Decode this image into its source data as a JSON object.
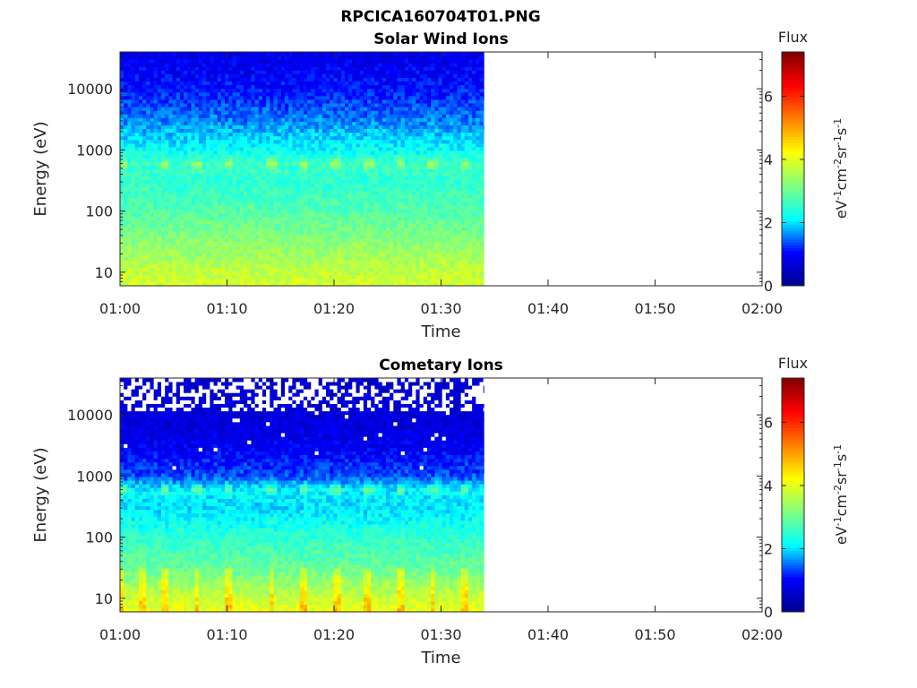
{
  "figure": {
    "title": "RPCICA160704T01.PNG"
  },
  "colorscale": [
    "#00008f",
    "#0000ff",
    "#00ffff",
    "#80ff80",
    "#ffff00",
    "#ff7f00",
    "#ff0000",
    "#800000"
  ],
  "chart_data": [
    {
      "type": "heatmap",
      "title": "Solar Wind Ions",
      "xlabel": "Time",
      "ylabel": "Energy (eV)",
      "x_ticks": [
        "01:00",
        "01:10",
        "01:20",
        "01:30",
        "01:40",
        "01:50",
        "02:00"
      ],
      "x_range": [
        "01:00",
        "02:00"
      ],
      "data_extent_x": [
        "01:00",
        "01:34"
      ],
      "y_scale": "log",
      "y_ticks": [
        10,
        100,
        1000,
        10000
      ],
      "y_range": [
        6,
        40000
      ],
      "colorbar": {
        "label": "Flux",
        "units": "eV-1cm-2sr-1s-1",
        "ticks": [
          0,
          2,
          4,
          6
        ],
        "range": [
          0,
          7.4
        ]
      },
      "flux_profile": {
        "energies_eV": [
          6,
          10,
          30,
          100,
          300,
          600,
          1000,
          3000,
          10000,
          40000
        ],
        "flux": [
          3.9,
          3.7,
          3.3,
          2.8,
          2.5,
          2.6,
          2.2,
          1.6,
          1.1,
          0.8
        ]
      },
      "band_peak_eV": 600,
      "band_peak_times": [
        "01:00",
        "01:04",
        "01:07",
        "01:10",
        "01:14",
        "01:17",
        "01:20",
        "01:23",
        "01:26",
        "01:29",
        "01:32"
      ]
    },
    {
      "type": "heatmap",
      "title": "Cometary Ions",
      "xlabel": "Time",
      "ylabel": "Energy (eV)",
      "x_ticks": [
        "01:00",
        "01:10",
        "01:20",
        "01:30",
        "01:40",
        "01:50",
        "02:00"
      ],
      "x_range": [
        "01:00",
        "02:00"
      ],
      "data_extent_x": [
        "01:00",
        "01:34"
      ],
      "y_scale": "log",
      "y_ticks": [
        10,
        100,
        1000,
        10000
      ],
      "y_range": [
        6,
        40000
      ],
      "colorbar": {
        "label": "Flux",
        "units": "eV-1cm-2sr-1s-1",
        "ticks": [
          0,
          2,
          4,
          6
        ],
        "range": [
          0,
          7.4
        ]
      },
      "flux_profile": {
        "energies_eV": [
          6,
          10,
          30,
          100,
          300,
          600,
          1000,
          3000,
          10000,
          40000
        ],
        "flux": [
          4.1,
          3.8,
          3.0,
          2.5,
          2.0,
          2.1,
          1.4,
          0.9,
          0.7,
          0.6
        ]
      },
      "band_peak_eV": 600,
      "band_peak_times": [
        "01:00",
        "01:04",
        "01:07",
        "01:10",
        "01:14",
        "01:17",
        "01:20",
        "01:23",
        "01:26",
        "01:29",
        "01:32"
      ],
      "spike_times": [
        "01:00",
        "01:02",
        "01:04",
        "01:07",
        "01:10",
        "01:14",
        "01:17",
        "01:20",
        "01:23",
        "01:26",
        "01:29",
        "01:32"
      ],
      "empty_bins_above_eV": 12000
    }
  ]
}
